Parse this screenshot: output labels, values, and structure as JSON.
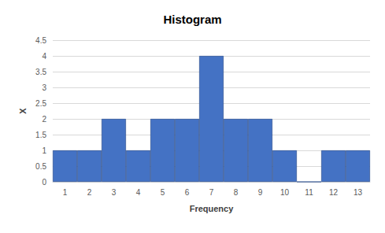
{
  "chart_data": {
    "type": "bar",
    "title": "Histogram",
    "x_label": "Frequency",
    "y_label": "X",
    "categories": [
      "1",
      "2",
      "3",
      "4",
      "5",
      "6",
      "7",
      "8",
      "9",
      "10",
      "11",
      "12",
      "13"
    ],
    "values": [
      1,
      1,
      2,
      1,
      2,
      2,
      4,
      2,
      2,
      1,
      0,
      1,
      1
    ],
    "color": "#4472c4",
    "ylim": [
      0,
      4.5
    ],
    "yticks": [
      0,
      0.5,
      1,
      1.5,
      2,
      2.5,
      3,
      3.5,
      4,
      4.5
    ],
    "grid": true
  }
}
